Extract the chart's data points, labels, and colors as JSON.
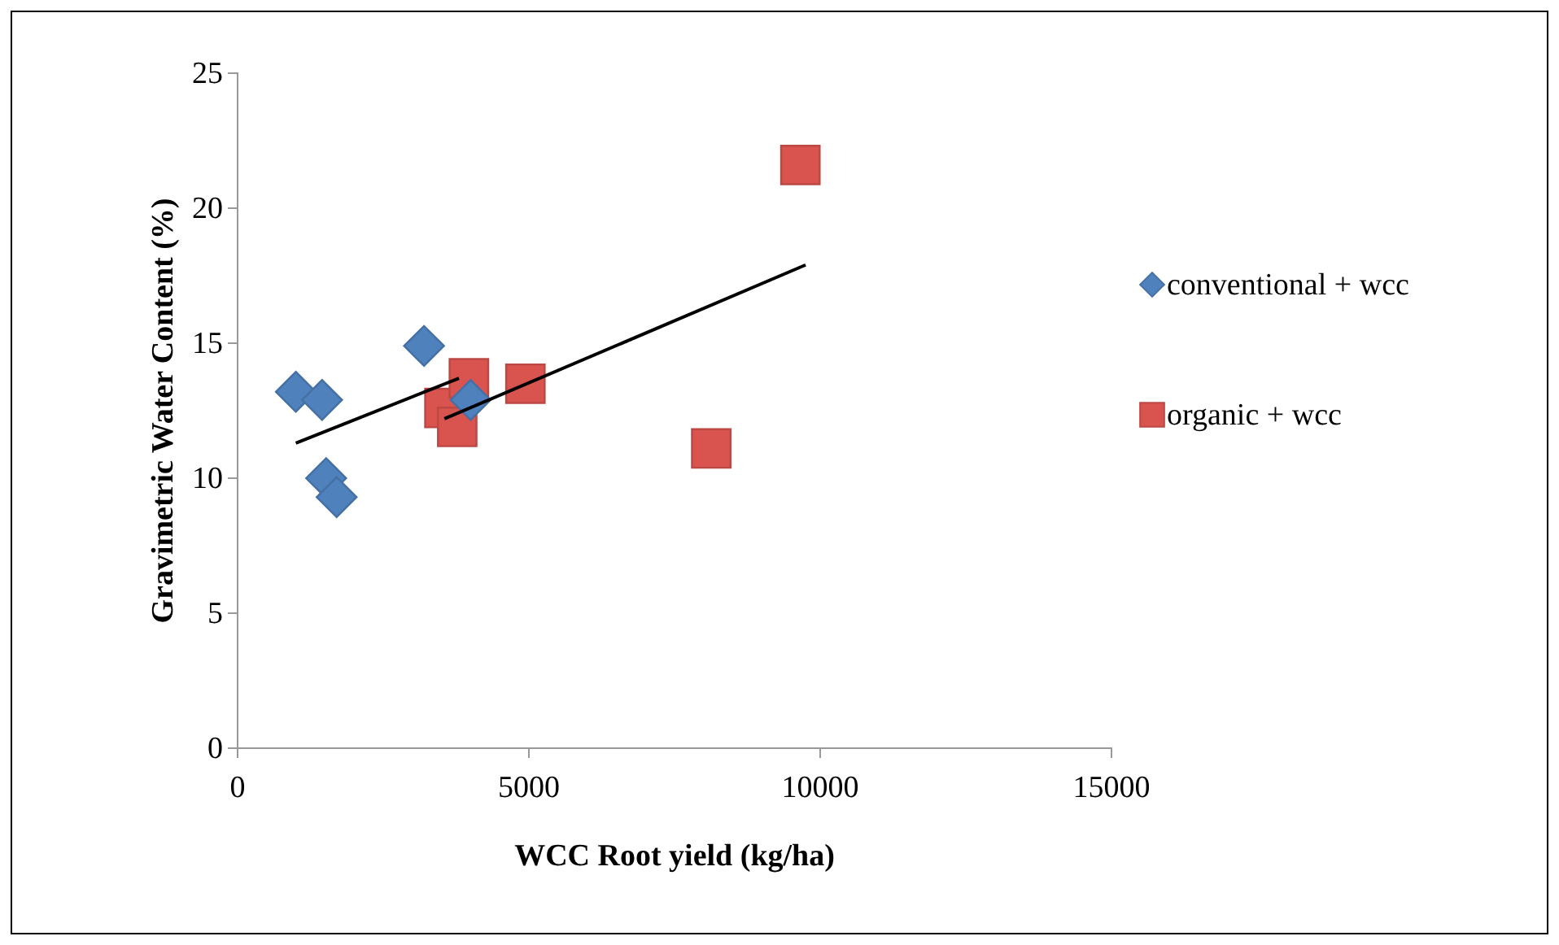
{
  "chart_data": {
    "type": "scatter",
    "xlabel": "WCC Root yield (kg/ha)",
    "ylabel": "Gravimetric Water Content (%)",
    "xlim": [
      0,
      15000
    ],
    "xticks": [
      0,
      5000,
      10000,
      15000
    ],
    "ylim": [
      0,
      25
    ],
    "yticks": [
      0,
      5,
      10,
      15,
      20,
      25
    ],
    "grid": false,
    "legend": "right",
    "series": [
      {
        "name": "conventional + wcc",
        "color": "#4f81bd",
        "marker": "diamond",
        "x": [
          1000,
          1450,
          1520,
          1700,
          3200,
          4000
        ],
        "values": [
          13.2,
          12.9,
          10.0,
          9.3,
          14.9,
          12.9
        ]
      },
      {
        "name": "organic + wcc",
        "color": "#d9534f",
        "marker": "square",
        "x": [
          3550,
          3970,
          3770,
          4940,
          8130,
          9660
        ],
        "values": [
          12.6,
          13.7,
          11.9,
          13.5,
          11.1,
          21.6
        ]
      },
      {
        "type": "line",
        "color": "#000000",
        "marker": "none",
        "x": [
          1000,
          3800
        ],
        "values": [
          11.3,
          13.7
        ]
      },
      {
        "type": "line",
        "color": "#000000",
        "marker": "none",
        "x": [
          3550,
          9750
        ],
        "values": [
          12.2,
          17.9
        ]
      }
    ]
  }
}
